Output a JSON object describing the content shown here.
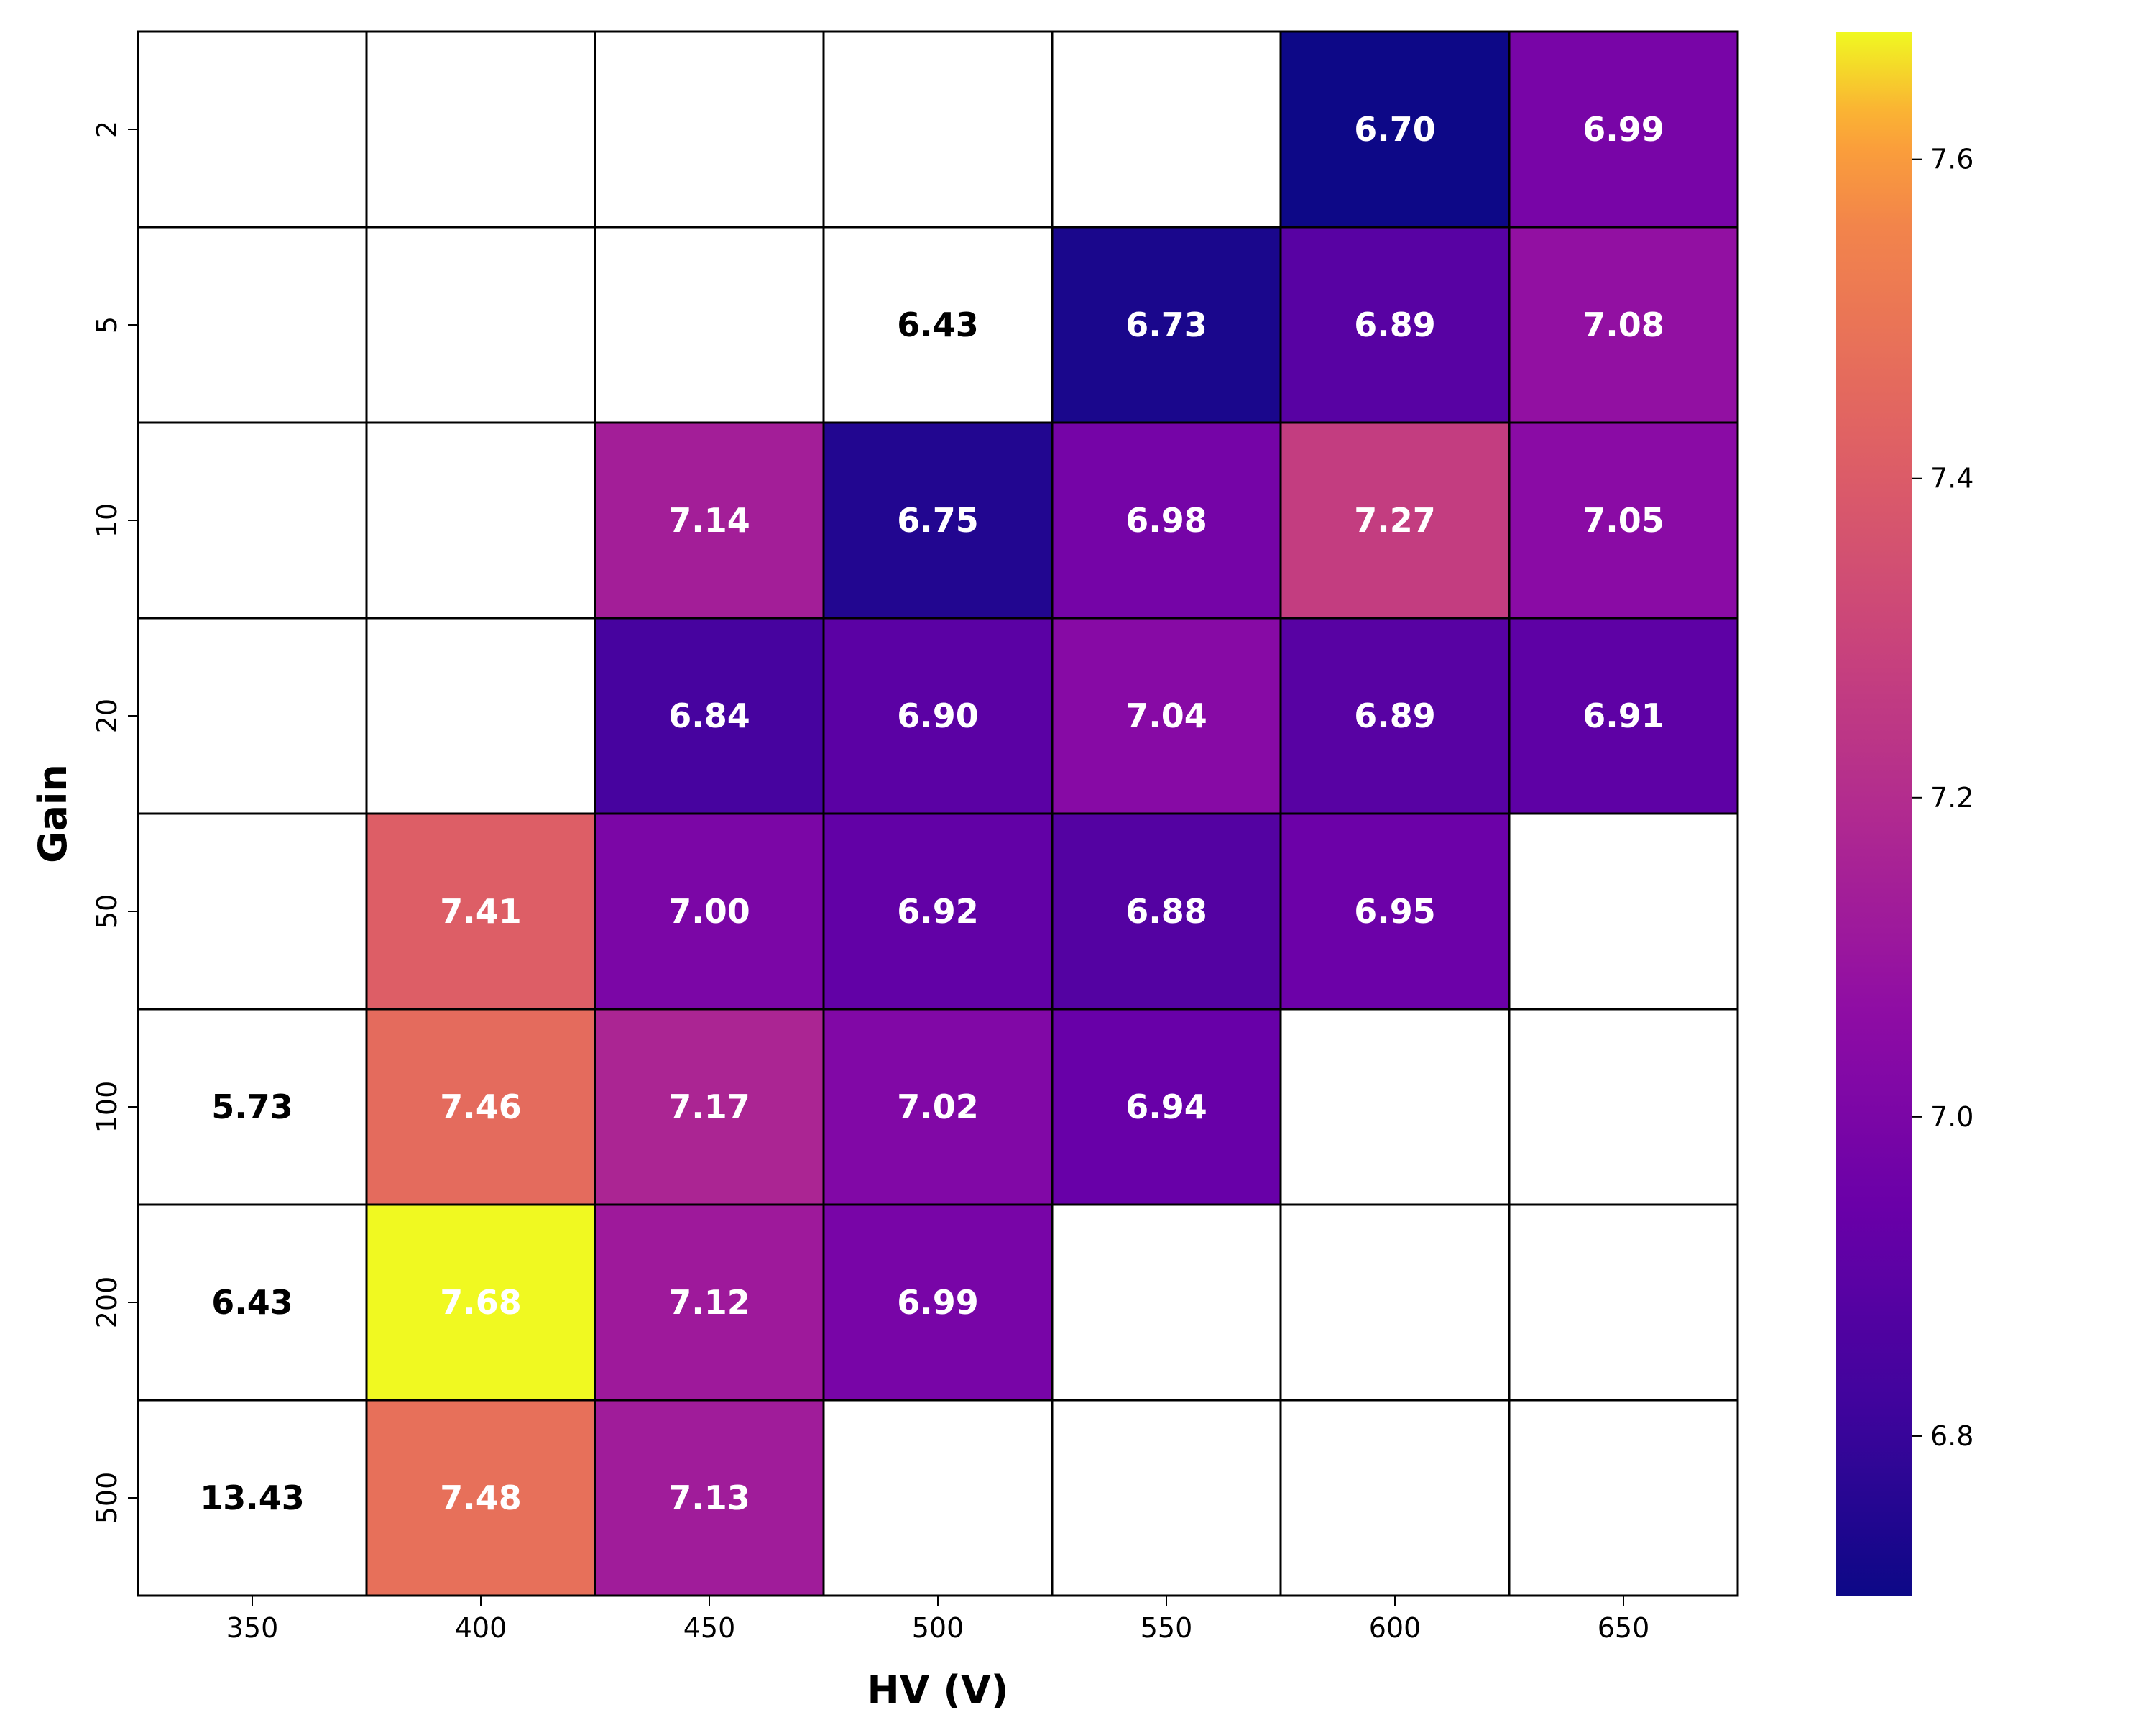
{
  "chart_data": {
    "type": "heatmap",
    "title": "",
    "xlabel": "HV (V)",
    "ylabel": "Gain",
    "x_categories": [
      "350",
      "400",
      "450",
      "500",
      "550",
      "600",
      "650"
    ],
    "y_categories": [
      "2",
      "5",
      "10",
      "20",
      "50",
      "100",
      "200",
      "500"
    ],
    "values": [
      [
        null,
        null,
        null,
        null,
        null,
        6.7,
        6.99
      ],
      [
        null,
        null,
        null,
        6.43,
        6.73,
        6.89,
        7.08
      ],
      [
        null,
        null,
        7.14,
        6.75,
        6.98,
        7.27,
        7.05
      ],
      [
        null,
        null,
        6.84,
        6.9,
        7.04,
        6.89,
        6.91
      ],
      [
        null,
        7.41,
        7.0,
        6.92,
        6.88,
        6.95,
        null
      ],
      [
        5.73,
        7.46,
        7.17,
        7.02,
        6.94,
        null,
        null
      ],
      [
        6.43,
        7.68,
        7.12,
        6.99,
        null,
        null,
        null
      ],
      [
        13.43,
        7.48,
        7.13,
        null,
        null,
        null,
        null
      ]
    ],
    "labels": [
      [
        "",
        "",
        "",
        "",
        "",
        "6.70",
        "6.99"
      ],
      [
        "",
        "",
        "",
        "6.43",
        "6.73",
        "6.89",
        "7.08"
      ],
      [
        "",
        "",
        "7.14",
        "6.75",
        "6.98",
        "7.27",
        "7.05"
      ],
      [
        "",
        "",
        "6.84",
        "6.90",
        "7.04",
        "6.89",
        "6.91"
      ],
      [
        "",
        "7.41",
        "7.00",
        "6.92",
        "6.88",
        "6.95",
        ""
      ],
      [
        "5.73",
        "7.46",
        "7.17",
        "7.02",
        "6.94",
        "",
        ""
      ],
      [
        "6.43",
        "7.68",
        "7.12",
        "6.99",
        "",
        "",
        ""
      ],
      [
        "13.43",
        "7.48",
        "7.13",
        "",
        "",
        "",
        ""
      ]
    ],
    "colorbar": {
      "colormap": "plasma",
      "range": [
        6.7,
        7.68
      ],
      "ticks": [
        "6.8",
        "7.0",
        "7.2",
        "7.4",
        "7.6"
      ]
    },
    "out_of_range_cell_color": "#ffffff",
    "grid_line_color": "#000000"
  }
}
